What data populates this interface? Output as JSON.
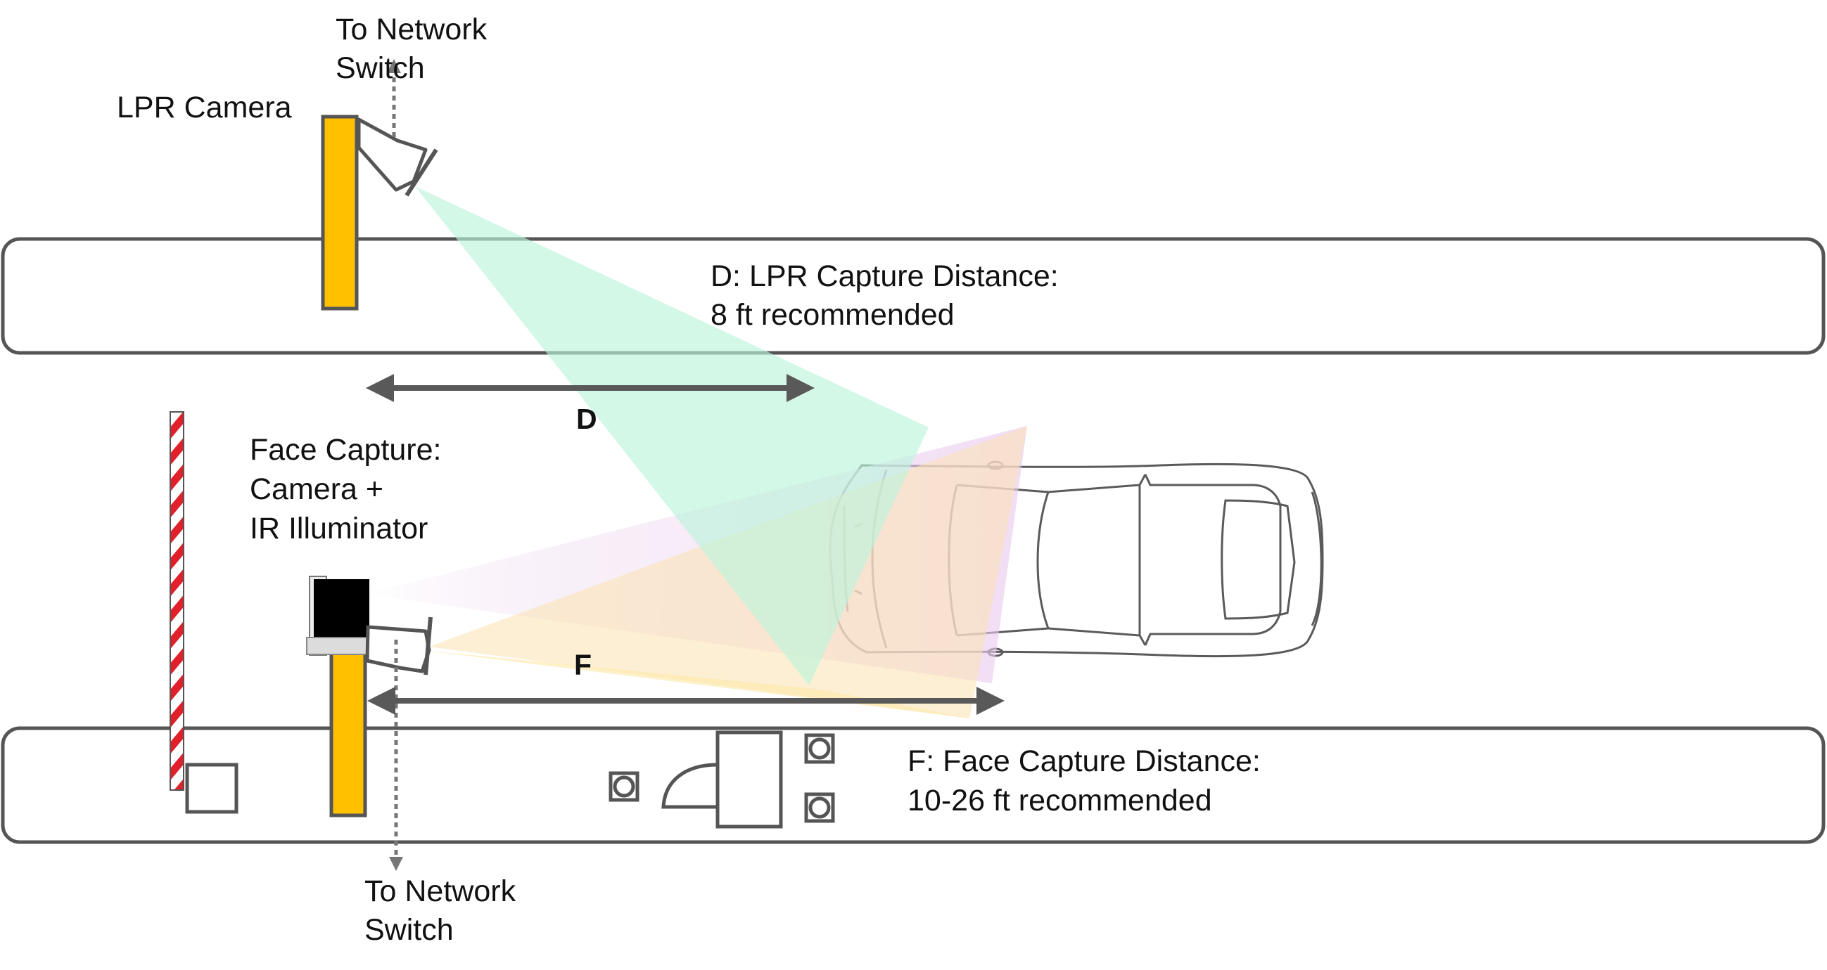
{
  "labels": {
    "lpr_switch_line1": "To Network",
    "lpr_switch_line2": "Switch",
    "lpr_camera": "LPR Camera",
    "lpr_distance_line1": "D: LPR Capture Distance:",
    "lpr_distance_line2": "8 ft recommended",
    "d_marker": "D",
    "face_capture_line1": "Face Capture:",
    "face_capture_line2": "Camera +",
    "face_capture_line3": "IR Illuminator",
    "f_marker": "F",
    "face_distance_line1": "F: Face Capture Distance:",
    "face_distance_line2": "10-26 ft recommended",
    "face_switch_line1": "To Network",
    "face_switch_line2": "Switch"
  },
  "colors": {
    "pole": "#FFC000",
    "outline": "#555555",
    "arrow": "#595959",
    "lpr_beam": "#C6F5E2",
    "face_beam_pink": "#EFD2F2",
    "face_beam_orange": "#FCEDB8",
    "gate_stripe": "#E0202A"
  },
  "icons": {
    "lpr_camera": "camera-icon",
    "face_camera": "camera-icon",
    "ir_illuminator": "illuminator-icon",
    "vehicle": "car-icon",
    "gate_arm": "barrier-gate-icon",
    "kiosk": "kiosk-icon"
  }
}
